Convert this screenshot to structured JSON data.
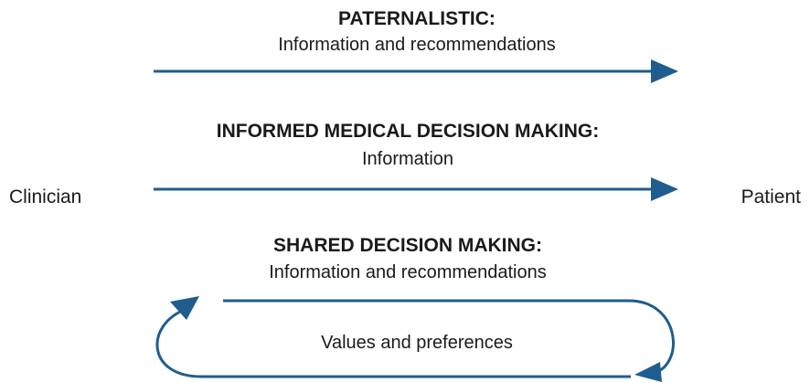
{
  "endpoints": {
    "left": "Clinician",
    "right": "Patient"
  },
  "models": [
    {
      "heading": "PATERNALISTIC:",
      "flow_label": "Information and recommendations"
    },
    {
      "heading": "INFORMED MEDICAL DECISION MAKING:",
      "flow_label": "Information"
    },
    {
      "heading": "SHARED DECISION MAKING:",
      "flow_label": "Information and recommendations",
      "return_label": "Values and preferences"
    }
  ],
  "colors": {
    "arrow": "#1f5d8f",
    "text": "#1a1a1a"
  }
}
